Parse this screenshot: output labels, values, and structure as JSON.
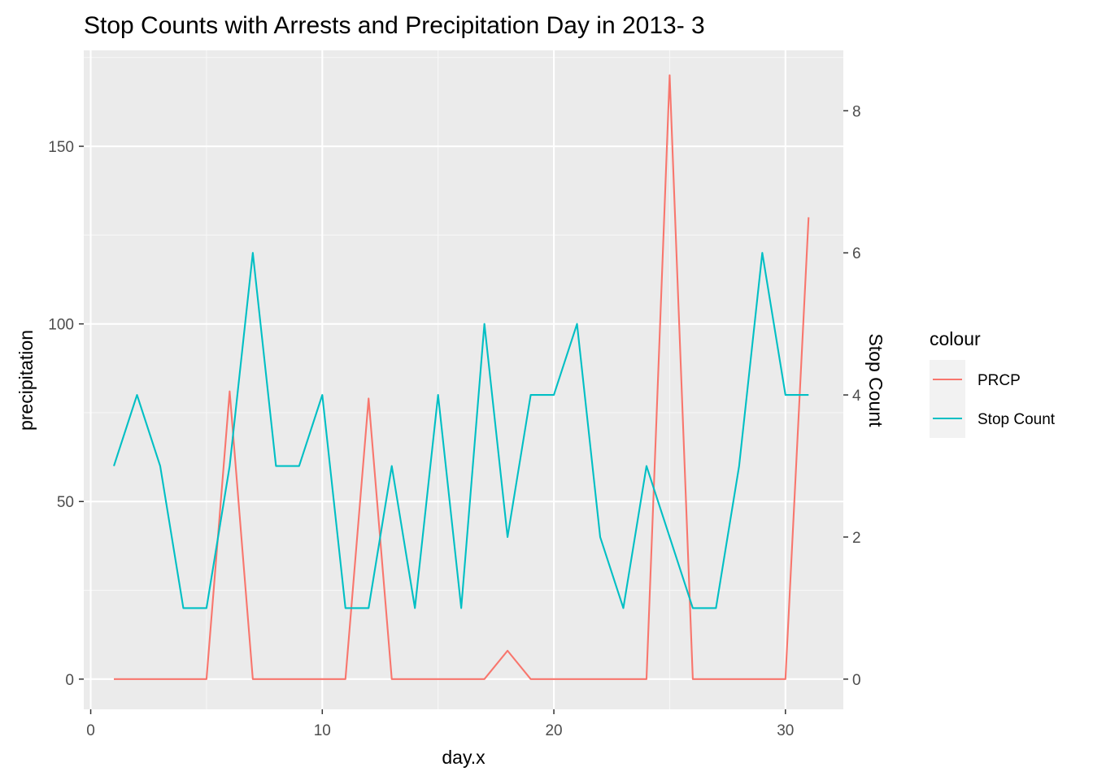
{
  "chart_data": {
    "type": "line",
    "title": "Stop Counts with Arrests and Precipitation Day in 2013- 3",
    "xlabel": "day.x",
    "ylabel": "precipitation",
    "y2label": "Stop Count",
    "xlim": [
      -0.3,
      32.5
    ],
    "ylim": [
      -8.5,
      177
    ],
    "y2lim": [
      -0.425,
      8.85
    ],
    "x_ticks": [
      0,
      10,
      20,
      30
    ],
    "y_ticks": [
      0,
      50,
      100,
      150
    ],
    "y2_ticks": [
      0,
      2,
      4,
      6,
      8
    ],
    "x_minor_ticks": [
      5,
      15,
      25
    ],
    "y_minor_ticks": [
      25,
      75,
      125,
      175
    ],
    "grid": true,
    "legend": {
      "title": "colour",
      "position": "right",
      "entries": [
        "PRCP",
        "Stop Count"
      ]
    },
    "x": [
      1,
      2,
      3,
      4,
      5,
      6,
      7,
      8,
      9,
      10,
      11,
      12,
      13,
      14,
      15,
      16,
      17,
      18,
      19,
      20,
      21,
      22,
      23,
      24,
      25,
      26,
      27,
      28,
      29,
      30,
      31
    ],
    "series": [
      {
        "name": "PRCP",
        "axis": "left",
        "color": "#F8766D",
        "values": [
          0,
          0,
          0,
          0,
          0,
          81,
          0,
          0,
          0,
          0,
          0,
          79,
          0,
          0,
          0,
          0,
          0,
          8,
          0,
          0,
          0,
          0,
          0,
          0,
          170,
          0,
          0,
          0,
          0,
          0,
          130
        ]
      },
      {
        "name": "Stop Count",
        "axis": "right",
        "color": "#00BFC4",
        "values": [
          3,
          4,
          3,
          1,
          1,
          3,
          6,
          3,
          3,
          4,
          1,
          1,
          3,
          1,
          4,
          1,
          5,
          2,
          4,
          4,
          5,
          2,
          1,
          3,
          2,
          1,
          1,
          3,
          6,
          4,
          4
        ]
      }
    ]
  },
  "colors": {
    "panel_background": "#EBEBEB",
    "grid_major": "#FFFFFF",
    "grid_minor": "#F7F7F7",
    "legend_key_background": "#F2F2F2"
  }
}
